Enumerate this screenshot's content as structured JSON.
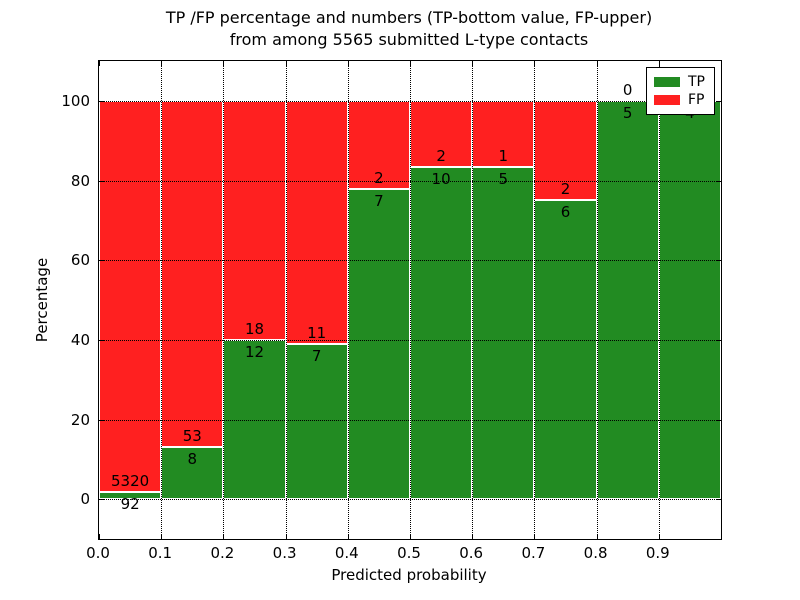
{
  "chart_data": {
    "type": "bar",
    "stacked": true,
    "orientation": "vertical",
    "title_lines": [
      "TP /FP percentage and numbers (TP-bottom value, FP-upper)",
      "from among 5565 submitted L-type contacts"
    ],
    "xlabel": "Predicted probability",
    "ylabel": "Percentage",
    "xlim": [
      0.0,
      1.0
    ],
    "ylim": [
      -10,
      110
    ],
    "x_tick_labels": [
      "0.0",
      "0.1",
      "0.2",
      "0.3",
      "0.4",
      "0.5",
      "0.6",
      "0.7",
      "0.8",
      "0.9"
    ],
    "y_ticks": [
      0,
      20,
      40,
      60,
      80,
      100
    ],
    "grid": {
      "on": true,
      "style": "dotted",
      "color": "#000000"
    },
    "bar_edge_color": "#ffffff",
    "total_contacts": 5565,
    "legend": {
      "position": "upper right",
      "entries": [
        {
          "label": "TP",
          "color": "#228b22"
        },
        {
          "label": "FP",
          "color": "#ff2020"
        }
      ]
    },
    "bins": [
      {
        "x_start": 0.0,
        "x_end": 0.1,
        "tp": 92,
        "fp": 5320
      },
      {
        "x_start": 0.1,
        "x_end": 0.2,
        "tp": 8,
        "fp": 53
      },
      {
        "x_start": 0.2,
        "x_end": 0.3,
        "tp": 12,
        "fp": 18
      },
      {
        "x_start": 0.3,
        "x_end": 0.4,
        "tp": 7,
        "fp": 11
      },
      {
        "x_start": 0.4,
        "x_end": 0.5,
        "tp": 7,
        "fp": 2
      },
      {
        "x_start": 0.5,
        "x_end": 0.6,
        "tp": 10,
        "fp": 2
      },
      {
        "x_start": 0.6,
        "x_end": 0.7,
        "tp": 5,
        "fp": 1
      },
      {
        "x_start": 0.7,
        "x_end": 0.8,
        "tp": 6,
        "fp": 2
      },
      {
        "x_start": 0.8,
        "x_end": 0.9,
        "tp": 5,
        "fp": 0
      },
      {
        "x_start": 0.9,
        "x_end": 1.0,
        "tp": 4,
        "fp": 0
      }
    ]
  }
}
